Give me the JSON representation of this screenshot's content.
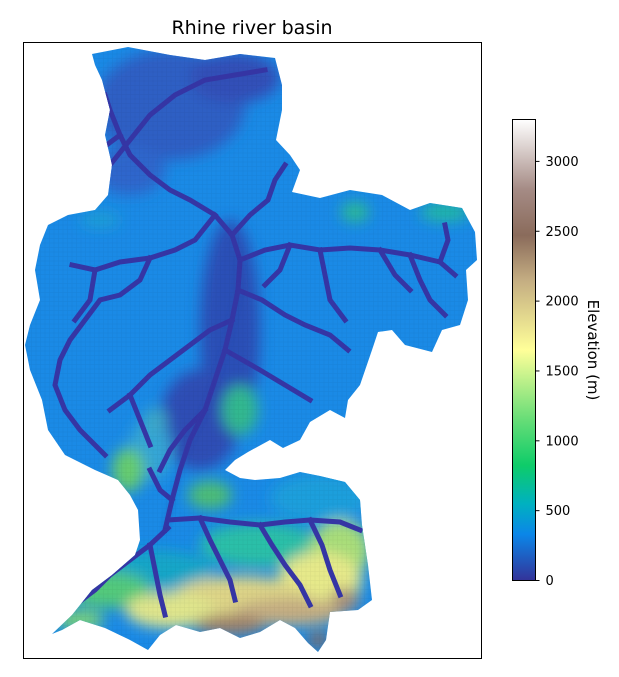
{
  "chart_data": {
    "type": "heatmap",
    "title": "Rhine river basin",
    "xlabel": "",
    "ylabel": "",
    "colorbar": {
      "label": "Elevation (m)",
      "range": [
        0,
        3300
      ],
      "ticks": [
        0,
        500,
        1000,
        1500,
        2000,
        2500,
        3000
      ],
      "tick_labels": [
        "0",
        "500",
        "1000",
        "1500",
        "2000",
        "2500",
        "3000"
      ],
      "colormap": "terrain",
      "stops": [
        {
          "value": 0,
          "color": "#333399"
        },
        {
          "value": 330,
          "color": "#0b86e8"
        },
        {
          "value": 550,
          "color": "#00b1c0"
        },
        {
          "value": 825,
          "color": "#0ecc69"
        },
        {
          "value": 1150,
          "color": "#66dd77"
        },
        {
          "value": 1650,
          "color": "#ffff99"
        },
        {
          "value": 2150,
          "color": "#c4ad82"
        },
        {
          "value": 2470,
          "color": "#8a6b5b"
        },
        {
          "value": 2800,
          "color": "#a58b85"
        },
        {
          "value": 3300,
          "color": "#ffffff"
        }
      ]
    },
    "legend": "none",
    "grid": false,
    "axes_ticks": false
  }
}
